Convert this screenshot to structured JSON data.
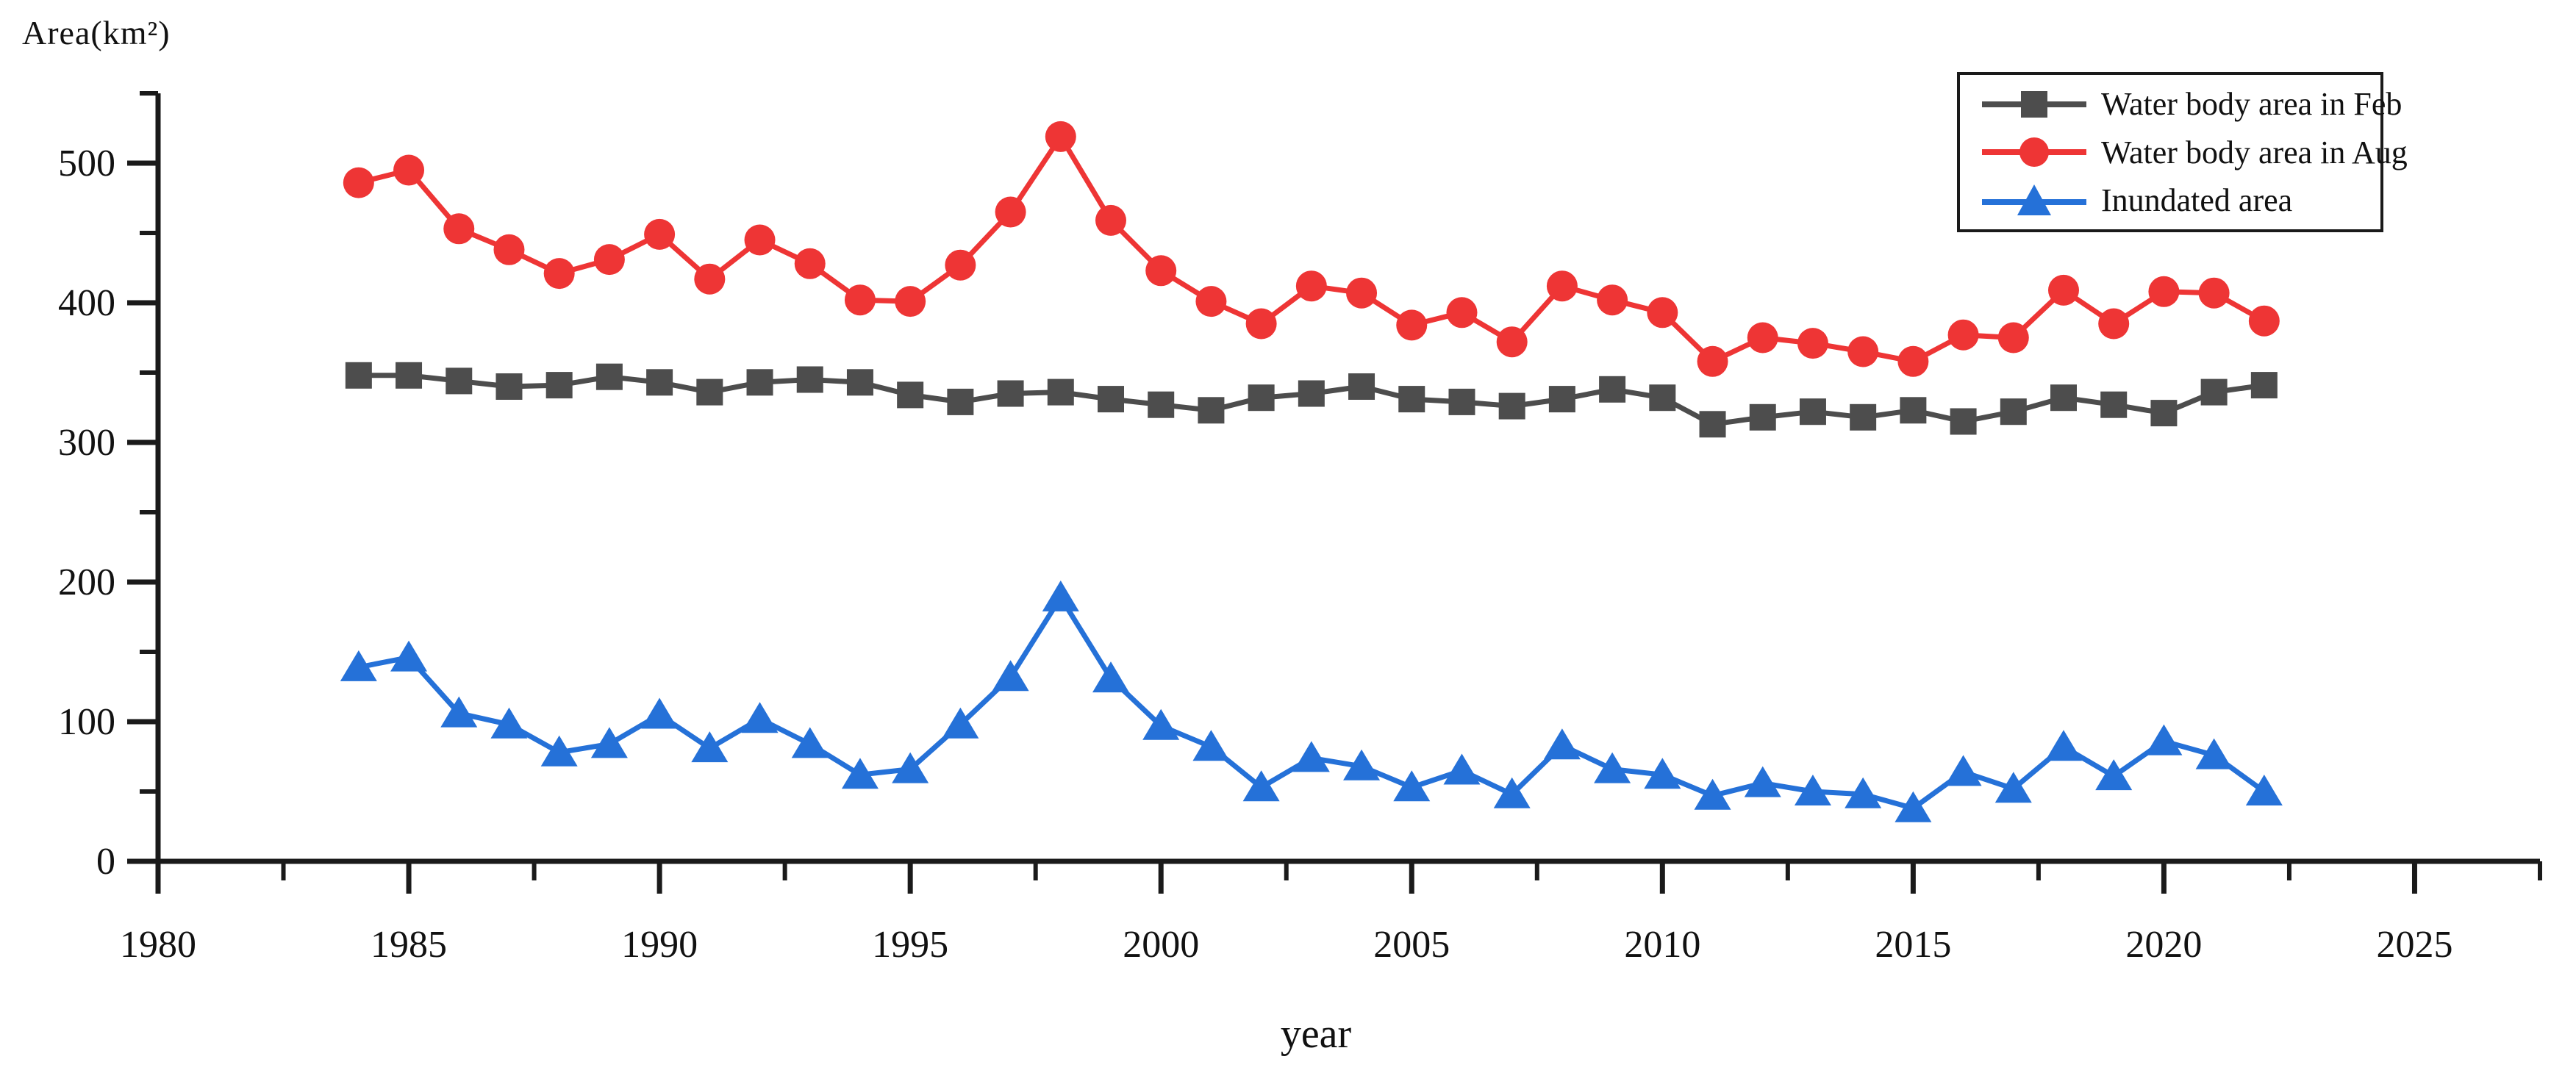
{
  "figure": {
    "background": "#ffffff",
    "axis_color": "#1a1a1a",
    "text_color": "#111111"
  },
  "chart_data": {
    "type": "line",
    "title": "",
    "ylabel": "Area(km²)",
    "xlabel": "year",
    "x": [
      1984,
      1985,
      1986,
      1987,
      1988,
      1989,
      1990,
      1991,
      1992,
      1993,
      1994,
      1995,
      1996,
      1997,
      1998,
      1999,
      2000,
      2001,
      2002,
      2003,
      2004,
      2005,
      2006,
      2007,
      2008,
      2009,
      2010,
      2011,
      2012,
      2013,
      2014,
      2015,
      2016,
      2017,
      2018,
      2019,
      2020,
      2021,
      2022
    ],
    "series": [
      {
        "name": "Water body area in Feb",
        "color": "#4d4d4d",
        "marker": "square",
        "values": [
          348,
          348,
          344,
          340,
          341,
          347,
          343,
          336,
          343,
          345,
          343,
          334,
          329,
          335,
          336,
          331,
          327,
          323,
          332,
          335,
          340,
          331,
          329,
          326,
          331,
          338,
          332,
          313,
          318,
          322,
          318,
          323,
          315,
          322,
          332,
          327,
          321,
          336,
          341
        ]
      },
      {
        "name": "Water body area in Aug",
        "color": "#ee3535",
        "marker": "circle",
        "values": [
          486,
          495,
          453,
          438,
          421,
          431,
          449,
          417,
          445,
          428,
          402,
          401,
          427,
          465,
          519,
          459,
          423,
          401,
          385,
          412,
          407,
          384,
          393,
          372,
          412,
          402,
          393,
          358,
          375,
          371,
          365,
          358,
          377,
          375,
          409,
          385,
          408,
          407,
          387
        ]
      },
      {
        "name": "Inundated area",
        "color": "#2571d8",
        "marker": "triangle-up",
        "values": [
          139,
          146,
          106,
          98,
          78,
          84,
          105,
          81,
          102,
          84,
          62,
          66,
          98,
          132,
          189,
          131,
          97,
          82,
          53,
          74,
          68,
          53,
          65,
          48,
          83,
          66,
          62,
          47,
          56,
          50,
          48,
          38,
          64,
          52,
          82,
          61,
          86,
          76,
          50
        ]
      }
    ],
    "xlim": [
      1980,
      2027.5
    ],
    "ylim": [
      0,
      550
    ],
    "x_ticks_major": [
      1980,
      1985,
      1990,
      1995,
      2000,
      2005,
      2010,
      2015,
      2020,
      2025
    ],
    "x_ticks_minor": [
      1982.5,
      1987.5,
      1992.5,
      1997.5,
      2002.5,
      2007.5,
      2012.5,
      2017.5,
      2022.5,
      2027.5
    ],
    "y_ticks_major": [
      0,
      100,
      200,
      300,
      400,
      500
    ],
    "y_ticks_minor": [
      50,
      150,
      250,
      350,
      450,
      550
    ],
    "grid": false,
    "legend_position": "top-right"
  }
}
